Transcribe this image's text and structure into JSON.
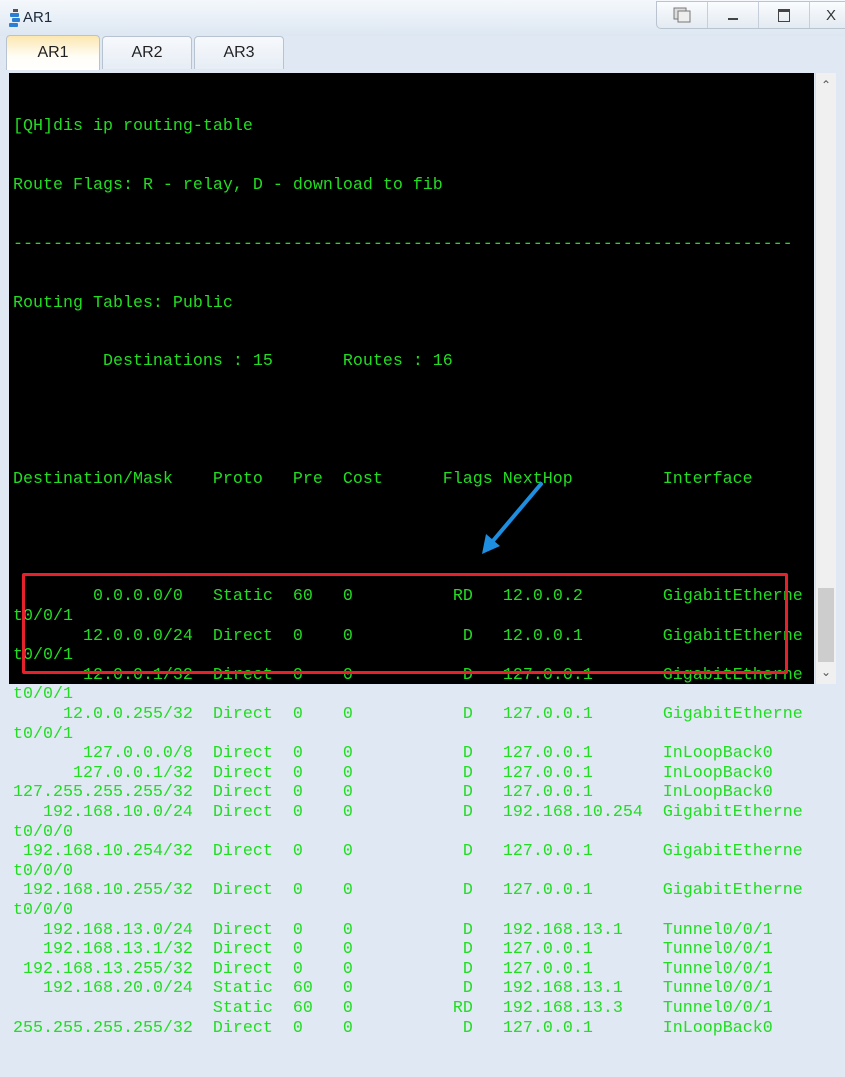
{
  "window": {
    "title": "AR1",
    "buttons": [
      "restore",
      "minimize",
      "maximize",
      "X"
    ]
  },
  "tabs": [
    {
      "label": "AR1",
      "active": true
    },
    {
      "label": "AR2"
    },
    {
      "label": "AR3"
    }
  ],
  "terminal": {
    "command": "[QH]dis ip routing-table",
    "flags_legend": "Route Flags: R - relay, D - download to fib",
    "separator": "------------------------------------------------------------------------------",
    "tables": "Routing Tables: Public",
    "summary": "         Destinations : 15       Routes : 16",
    "header": "Destination/Mask    Proto   Pre  Cost      Flags NextHop         Interface",
    "routes": [
      {
        "dest": "0.0.0.0/0 ",
        "proto": "Static",
        "pre": "60",
        "cost": "0",
        "flags": "RD",
        "nexthop": "12.0.0.2",
        "iface": "GigabitEthernet0/0/1"
      },
      {
        "dest": "12.0.0.0/24",
        "proto": "Direct",
        "pre": "0",
        "cost": "0",
        "flags": "D",
        "nexthop": "12.0.0.1",
        "iface": "GigabitEthernet0/0/1"
      },
      {
        "dest": "12.0.0.1/32",
        "proto": "Direct",
        "pre": "0",
        "cost": "0",
        "flags": "D",
        "nexthop": "127.0.0.1",
        "iface": "GigabitEthernet0/0/1"
      },
      {
        "dest": "12.0.0.255/32",
        "proto": "Direct",
        "pre": "0",
        "cost": "0",
        "flags": "D",
        "nexthop": "127.0.0.1",
        "iface": "GigabitEthernet0/0/1"
      },
      {
        "dest": "127.0.0.0/8",
        "proto": "Direct",
        "pre": "0",
        "cost": "0",
        "flags": "D",
        "nexthop": "127.0.0.1",
        "iface": "InLoopBack0"
      },
      {
        "dest": "127.0.0.1/32",
        "proto": "Direct",
        "pre": "0",
        "cost": "0",
        "flags": "D",
        "nexthop": "127.0.0.1",
        "iface": "InLoopBack0"
      },
      {
        "dest": "127.255.255.255/32",
        "proto": "Direct",
        "pre": "0",
        "cost": "0",
        "flags": "D",
        "nexthop": "127.0.0.1",
        "iface": "InLoopBack0"
      },
      {
        "dest": "192.168.10.0/24",
        "proto": "Direct",
        "pre": "0",
        "cost": "0",
        "flags": "D",
        "nexthop": "192.168.10.254",
        "iface": "GigabitEthernet0/0/0"
      },
      {
        "dest": "192.168.10.254/32",
        "proto": "Direct",
        "pre": "0",
        "cost": "0",
        "flags": "D",
        "nexthop": "127.0.0.1",
        "iface": "GigabitEthernet0/0/0"
      },
      {
        "dest": "192.168.10.255/32",
        "proto": "Direct",
        "pre": "0",
        "cost": "0",
        "flags": "D",
        "nexthop": "127.0.0.1",
        "iface": "GigabitEthernet0/0/0"
      },
      {
        "dest": "192.168.13.0/24",
        "proto": "Direct",
        "pre": "0",
        "cost": "0",
        "flags": "D",
        "nexthop": "192.168.13.1",
        "iface": "Tunnel0/0/1"
      },
      {
        "dest": "192.168.13.1/32",
        "proto": "Direct",
        "pre": "0",
        "cost": "0",
        "flags": "D",
        "nexthop": "127.0.0.1",
        "iface": "Tunnel0/0/1"
      },
      {
        "dest": "192.168.13.255/32",
        "proto": "Direct",
        "pre": "0",
        "cost": "0",
        "flags": "D",
        "nexthop": "127.0.0.1",
        "iface": "Tunnel0/0/1"
      },
      {
        "dest": "192.168.20.0/24",
        "proto": "Static",
        "pre": "60",
        "cost": "0",
        "flags": "D",
        "nexthop": "192.168.13.1",
        "iface": "Tunnel0/0/1"
      },
      {
        "dest": "",
        "proto": "Static",
        "pre": "60",
        "cost": "0",
        "flags": "RD",
        "nexthop": "192.168.13.3",
        "iface": "Tunnel0/0/1"
      },
      {
        "dest": "255.255.255.255/32",
        "proto": "Direct",
        "pre": "0",
        "cost": "0",
        "flags": "D",
        "nexthop": "127.0.0.1",
        "iface": "InLoopBack0"
      }
    ]
  },
  "colors": {
    "terminal_bg": "#000000",
    "terminal_text": "#22dd22",
    "highlight_box": "#e5222b",
    "arrow": "#1e8fe0"
  }
}
